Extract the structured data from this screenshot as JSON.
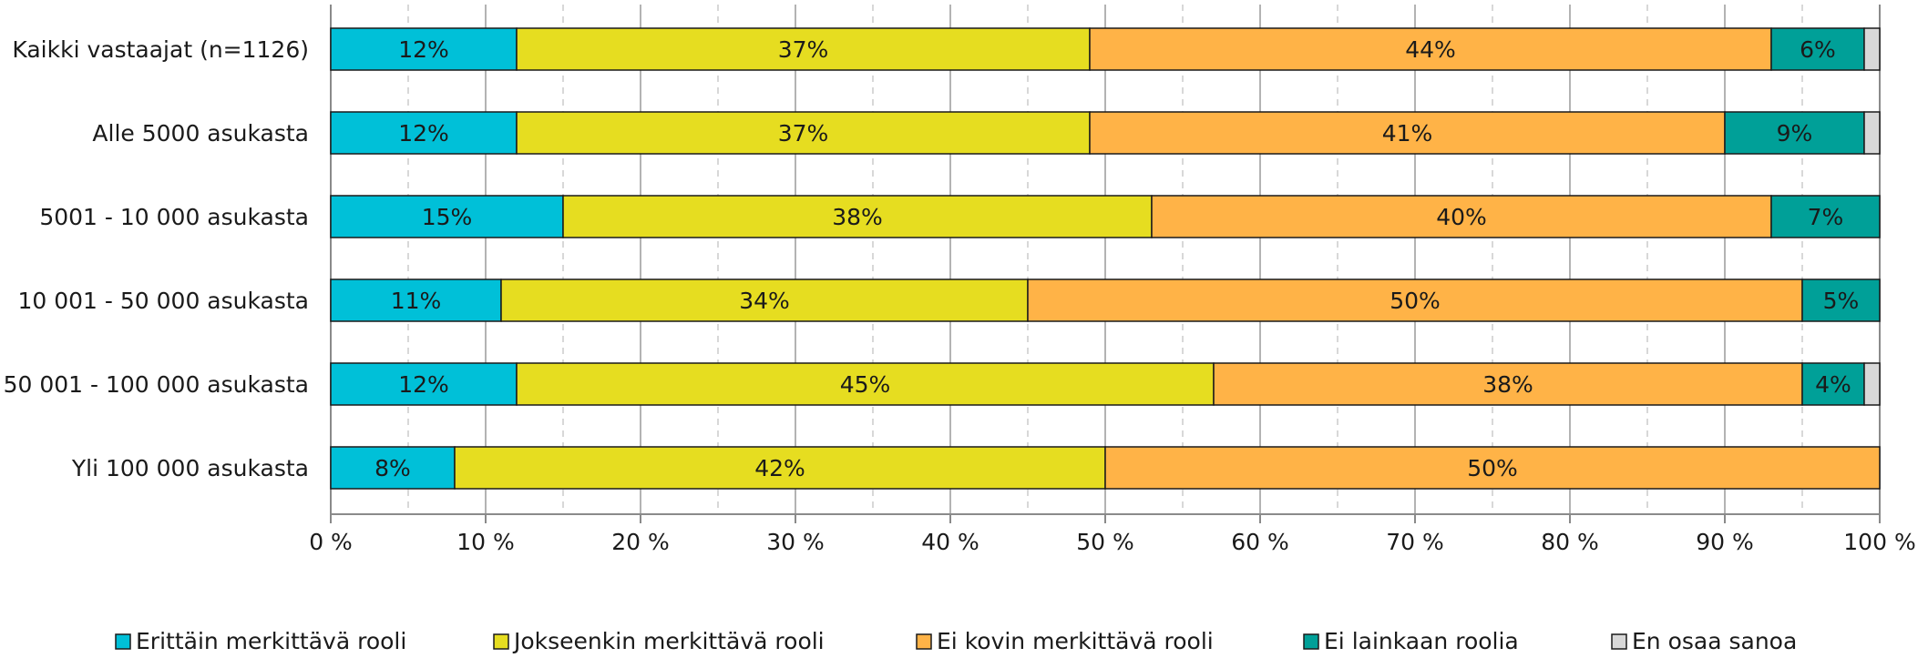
{
  "chart_data": {
    "type": "bar",
    "orientation": "horizontal",
    "stacked": true,
    "categories": [
      "Kaikki vastaajat (n=1126)",
      "Alle 5000 asukasta",
      "5001 - 10 000 asukasta",
      "10 001 - 50 000 asukasta",
      "50 001 - 100 000 asukasta",
      "Yli 100 000 asukasta"
    ],
    "series": [
      {
        "name": "Erittäin merkittävä rooli",
        "color": "#00C0D8",
        "values": [
          12,
          12,
          15,
          11,
          12,
          8
        ],
        "labels": [
          "12%",
          "12%",
          "15%",
          "11%",
          "12%",
          "8%"
        ]
      },
      {
        "name": "Jokseenkin merkittävä rooli",
        "color": "#E6DD20",
        "values": [
          37,
          37,
          38,
          34,
          45,
          42
        ],
        "labels": [
          "37%",
          "37%",
          "38%",
          "34%",
          "45%",
          "42%"
        ]
      },
      {
        "name": "Ei kovin merkittävä rooli",
        "color": "#FFB347",
        "values": [
          44,
          41,
          40,
          50,
          38,
          50
        ],
        "labels": [
          "44%",
          "41%",
          "40%",
          "50%",
          "38%",
          "50%"
        ]
      },
      {
        "name": "Ei lainkaan roolia",
        "color": "#00A098",
        "values": [
          6,
          9,
          7,
          5,
          4,
          0
        ],
        "labels": [
          "6%",
          "9%",
          "7%",
          "5%",
          "4%",
          ""
        ]
      },
      {
        "name": "En osaa sanoa",
        "color": "#D8D8D8",
        "values": [
          1,
          1,
          0,
          0,
          1,
          0
        ],
        "labels": [
          "",
          "",
          "",
          "",
          "",
          ""
        ]
      }
    ],
    "x_ticks": [
      "0 %",
      "10 %",
      "20 %",
      "30 %",
      "40 %",
      "50 %",
      "60 %",
      "70 %",
      "80 %",
      "90 %",
      "100 %"
    ],
    "xlim": [
      0,
      100
    ],
    "grid": true,
    "legend_position": "bottom"
  }
}
